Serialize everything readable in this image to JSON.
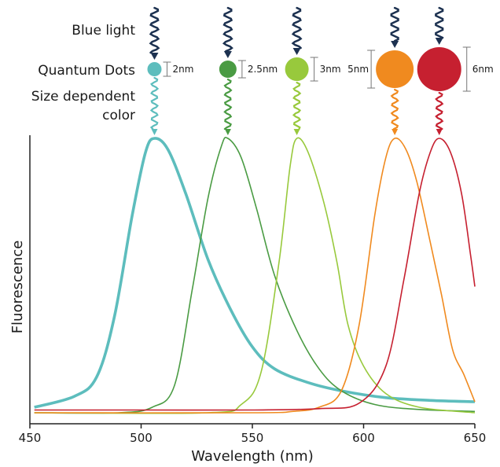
{
  "labels": {
    "blue_light": "Blue light",
    "quantum_dots": "Quantum Dots",
    "size_dependent_1": "Size dependent",
    "size_dependent_2": "color"
  },
  "dots": [
    {
      "size_label": "2nm",
      "color": "#5dbdbd",
      "peak_nm": 506
    },
    {
      "size_label": "2.5nm",
      "color": "#4a9b43",
      "peak_nm": 539
    },
    {
      "size_label": "3nm",
      "color": "#98c93c",
      "peak_nm": 570
    },
    {
      "size_label": "5nm",
      "color": "#f08a1f",
      "peak_nm": 614
    },
    {
      "size_label": "6nm",
      "color": "#c62030",
      "peak_nm": 634
    }
  ],
  "arrow_color": "#1c3150",
  "chart_data": {
    "type": "line",
    "xlabel": "Wavelength (nm)",
    "ylabel": "Fluorescence",
    "xlim": [
      450,
      650
    ],
    "ylim": [
      0,
      1
    ],
    "x_ticks": [
      450,
      500,
      550,
      600,
      650
    ],
    "series": [
      {
        "color": "#5dbdbd",
        "points": [
          [
            452,
            0.02
          ],
          [
            470,
            0.06
          ],
          [
            480,
            0.13
          ],
          [
            488,
            0.35
          ],
          [
            496,
            0.72
          ],
          [
            502,
            0.95
          ],
          [
            506,
            1.0
          ],
          [
            512,
            0.96
          ],
          [
            520,
            0.8
          ],
          [
            530,
            0.56
          ],
          [
            540,
            0.38
          ],
          [
            550,
            0.24
          ],
          [
            560,
            0.16
          ],
          [
            575,
            0.11
          ],
          [
            590,
            0.08
          ],
          [
            610,
            0.055
          ],
          [
            630,
            0.045
          ],
          [
            650,
            0.04
          ]
        ]
      },
      {
        "color": "#4a9b43",
        "points": [
          [
            452,
            0.0
          ],
          [
            490,
            0.0
          ],
          [
            505,
            0.02
          ],
          [
            515,
            0.1
          ],
          [
            523,
            0.45
          ],
          [
            530,
            0.78
          ],
          [
            536,
            0.97
          ],
          [
            539,
            1.0
          ],
          [
            545,
            0.93
          ],
          [
            552,
            0.74
          ],
          [
            560,
            0.5
          ],
          [
            570,
            0.3
          ],
          [
            580,
            0.16
          ],
          [
            590,
            0.08
          ],
          [
            605,
            0.03
          ],
          [
            625,
            0.012
          ],
          [
            650,
            0.005
          ]
        ]
      },
      {
        "color": "#98c93c",
        "points": [
          [
            452,
            0.0
          ],
          [
            530,
            0.0
          ],
          [
            545,
            0.03
          ],
          [
            554,
            0.15
          ],
          [
            562,
            0.55
          ],
          [
            567,
            0.9
          ],
          [
            570,
            1.0
          ],
          [
            575,
            0.95
          ],
          [
            582,
            0.77
          ],
          [
            588,
            0.55
          ],
          [
            593,
            0.32
          ],
          [
            600,
            0.17
          ],
          [
            610,
            0.07
          ],
          [
            625,
            0.02
          ],
          [
            650,
            0.0
          ]
        ]
      },
      {
        "color": "#f08a1f",
        "points": [
          [
            452,
            0.0
          ],
          [
            550,
            0.0
          ],
          [
            568,
            0.005
          ],
          [
            580,
            0.02
          ],
          [
            590,
            0.08
          ],
          [
            598,
            0.32
          ],
          [
            605,
            0.72
          ],
          [
            610,
            0.93
          ],
          [
            614,
            1.0
          ],
          [
            619,
            0.96
          ],
          [
            624,
            0.84
          ],
          [
            630,
            0.62
          ],
          [
            635,
            0.43
          ],
          [
            640,
            0.23
          ],
          [
            645,
            0.14
          ],
          [
            650,
            0.04
          ]
        ]
      },
      {
        "color": "#c62030",
        "points": [
          [
            452,
            0.01
          ],
          [
            500,
            0.01
          ],
          [
            550,
            0.01
          ],
          [
            580,
            0.015
          ],
          [
            598,
            0.035
          ],
          [
            610,
            0.17
          ],
          [
            618,
            0.48
          ],
          [
            625,
            0.8
          ],
          [
            630,
            0.95
          ],
          [
            634,
            1.0
          ],
          [
            639,
            0.95
          ],
          [
            644,
            0.8
          ],
          [
            648,
            0.58
          ],
          [
            650,
            0.46
          ]
        ]
      }
    ]
  }
}
